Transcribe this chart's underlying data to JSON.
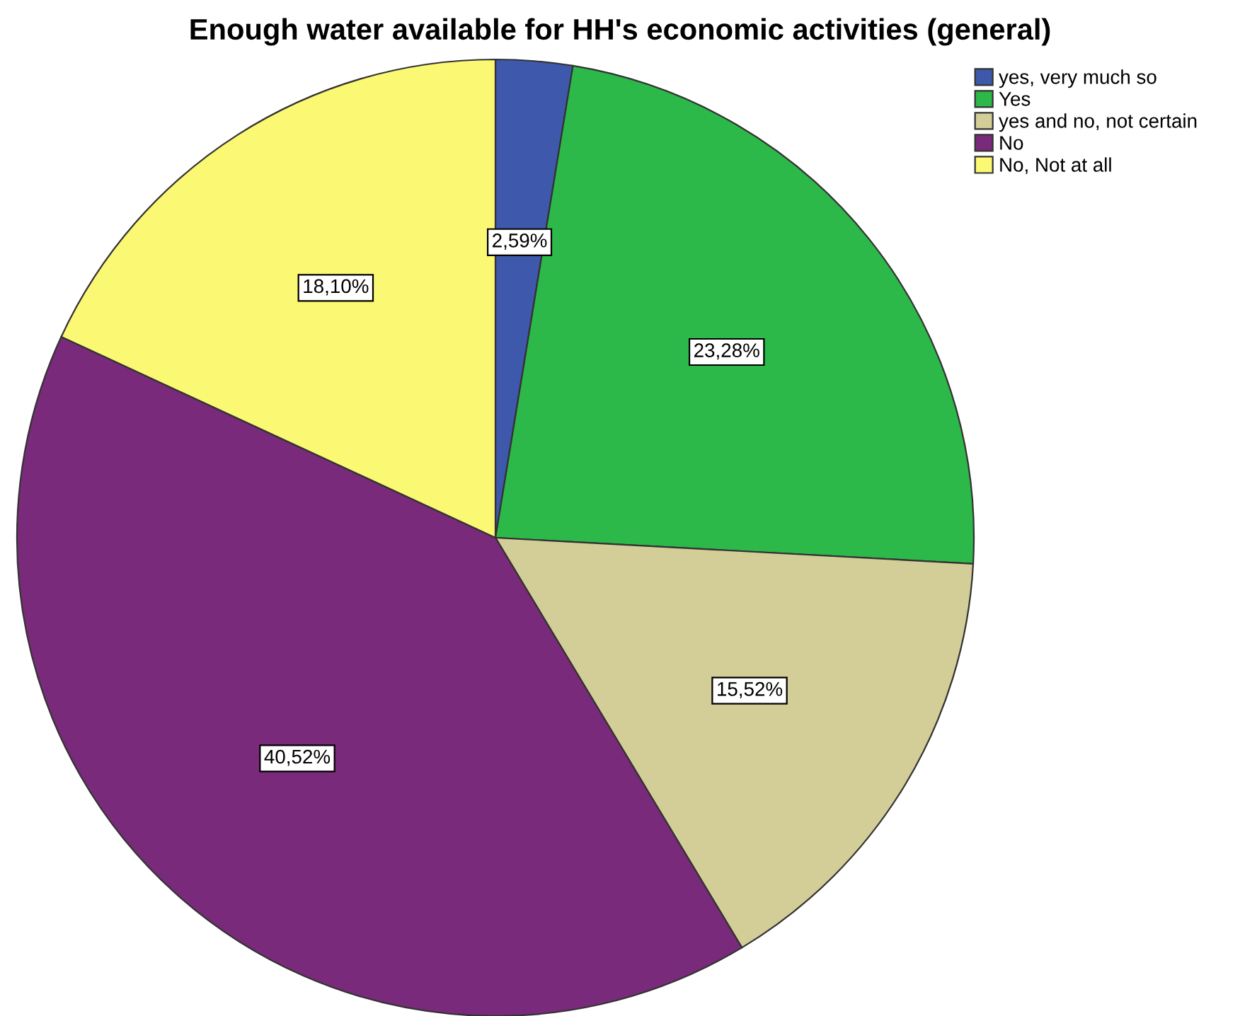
{
  "chart_data": {
    "type": "pie",
    "title": "Enough water available for HH's economic activities (general)",
    "categories": [
      "yes, very much so",
      "Yes",
      "yes and no, not certain",
      "No",
      "No, Not at all"
    ],
    "values": [
      2.59,
      23.28,
      15.52,
      40.52,
      18.1
    ],
    "value_labels": [
      "2,59%",
      "23,28%",
      "15,52%",
      "40,52%",
      "18,10%"
    ],
    "colors": [
      "#3e58ac",
      "#2db84a",
      "#d3ce97",
      "#7a2a7a",
      "#fbf873"
    ],
    "legend": "top right"
  }
}
